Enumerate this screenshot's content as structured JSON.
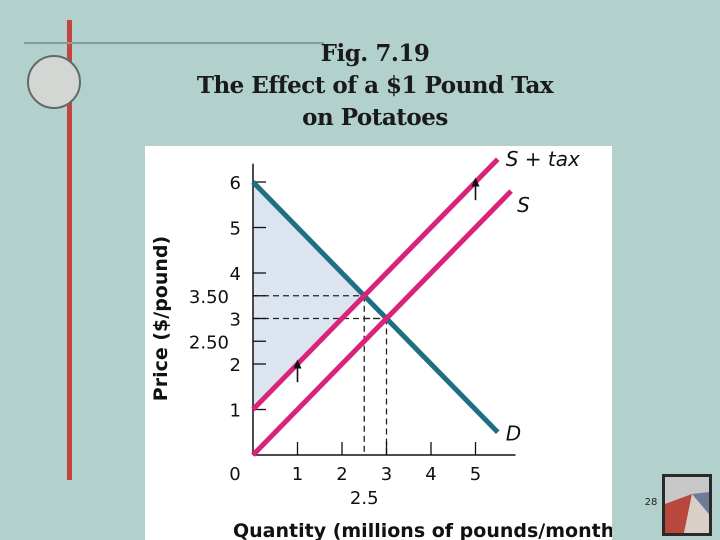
{
  "slide": {
    "title_lines": [
      "Fig. 7.19",
      "The Effect of a $1 Pound Tax",
      "on Potatoes"
    ],
    "page_number": "28"
  },
  "colors": {
    "background": "#b2d0cc",
    "accent_line": "#c4443f",
    "demand": "#1f6f82",
    "supply": "#d9227a",
    "shade": "#dce4f0",
    "dash": "#222222"
  },
  "chart_data": {
    "type": "line",
    "xlabel": "Quantity (millions of pounds/month)",
    "ylabel": "Price ($/pound)",
    "xlim": [
      0,
      5.9
    ],
    "ylim": [
      0,
      6.4
    ],
    "x_ticks": [
      1,
      2,
      3,
      4,
      5
    ],
    "y_ticks": [
      1,
      2,
      3,
      4,
      5,
      6
    ],
    "extra_y_ticks": [
      {
        "value": 3.5,
        "label": "3.50"
      },
      {
        "value": 2.5,
        "label": "2.50"
      }
    ],
    "extra_x_ticks": [
      {
        "value": 2.5,
        "label": "2.5"
      }
    ],
    "origin_label": "0",
    "series": [
      {
        "name": "D",
        "color": "#1f6f82",
        "points": [
          [
            0,
            6
          ],
          [
            5.5,
            0.5
          ]
        ]
      },
      {
        "name": "S",
        "color": "#d9227a",
        "points": [
          [
            0,
            0
          ],
          [
            5.8,
            5.8
          ]
        ]
      },
      {
        "name": "S + tax",
        "color": "#d9227a",
        "points": [
          [
            0,
            1
          ],
          [
            5.5,
            6.5
          ]
        ]
      }
    ],
    "equilibria": [
      {
        "x": 3,
        "y": 3
      },
      {
        "x": 2.5,
        "y": 3.5
      }
    ],
    "shaded_region": [
      [
        0,
        6
      ],
      [
        0,
        1
      ],
      [
        2.5,
        3.5
      ]
    ],
    "arrows": [
      {
        "from": [
          1,
          1.6
        ],
        "to": [
          1,
          2.1
        ]
      },
      {
        "from": [
          5,
          5.6
        ],
        "to": [
          5,
          6.1
        ]
      }
    ],
    "grid": false
  }
}
